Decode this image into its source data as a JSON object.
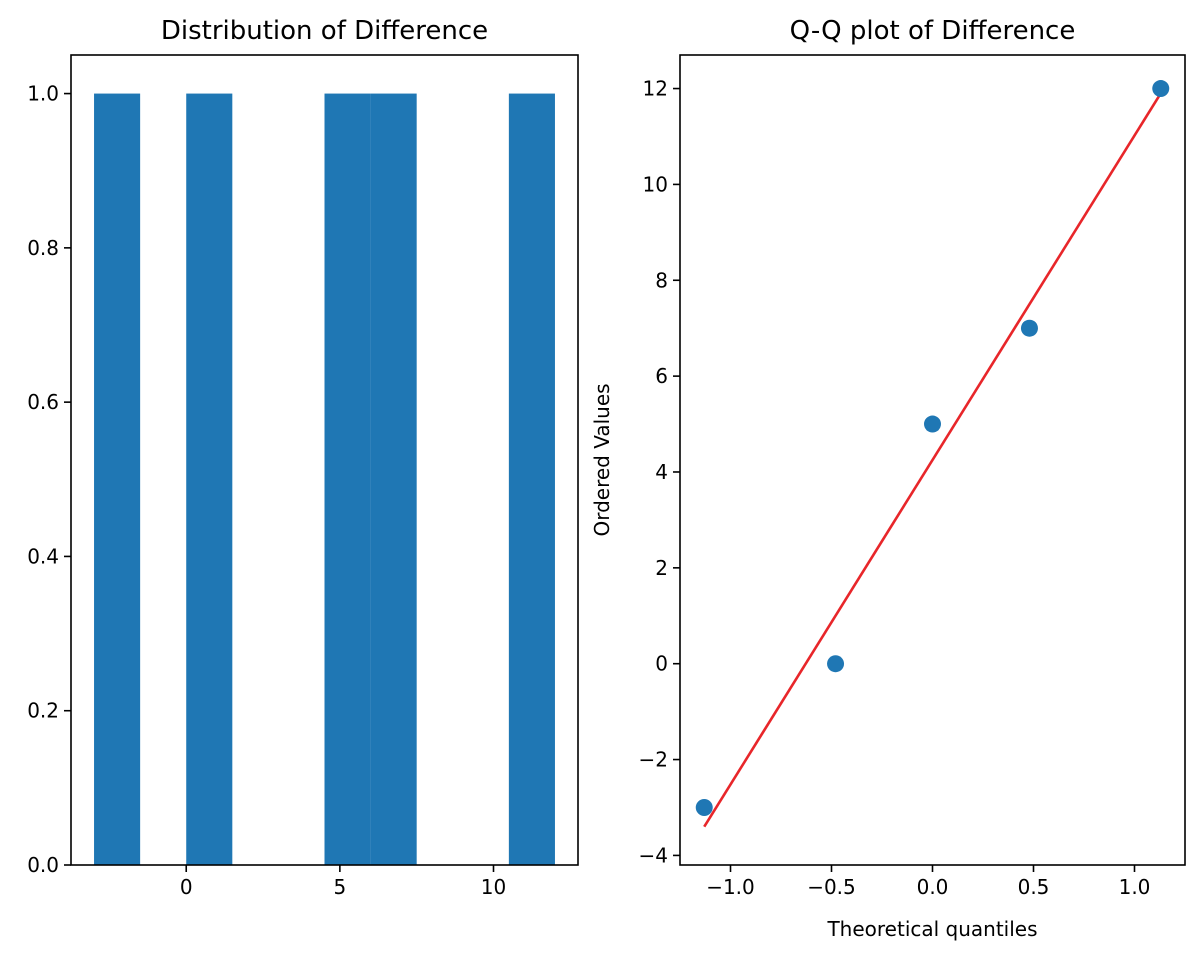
{
  "chart_data": [
    {
      "type": "bar",
      "title": "Distribution of Difference",
      "xlabel": "",
      "ylabel": "",
      "grid": false,
      "xlim": [
        -3.75,
        12.75
      ],
      "ylim": [
        0,
        1.05
      ],
      "bins": [
        {
          "start": -3.0,
          "end": -1.5,
          "count": 1
        },
        {
          "start": 0.0,
          "end": 1.5,
          "count": 1
        },
        {
          "start": 4.5,
          "end": 6.0,
          "count": 1
        },
        {
          "start": 6.0,
          "end": 7.5,
          "count": 1
        },
        {
          "start": 10.5,
          "end": 12.0,
          "count": 1
        }
      ],
      "xticks": [
        0,
        5,
        10
      ],
      "xtick_labels": [
        "0",
        "5",
        "10"
      ],
      "yticks": [
        0.0,
        0.2,
        0.4,
        0.6,
        0.8,
        1.0
      ],
      "ytick_labels": [
        "0.0",
        "0.2",
        "0.4",
        "0.6",
        "0.8",
        "1.0"
      ],
      "bar_color": "#1f77b4"
    },
    {
      "type": "scatter",
      "title": "Q-Q plot of Difference",
      "xlabel": "Theoretical quantiles",
      "ylabel": "Ordered Values",
      "grid": false,
      "xlim": [
        -1.25,
        1.25
      ],
      "ylim": [
        -4.2,
        12.7
      ],
      "points": [
        {
          "x": -1.13,
          "y": -3
        },
        {
          "x": -0.48,
          "y": 0
        },
        {
          "x": 0.0,
          "y": 5
        },
        {
          "x": 0.48,
          "y": 7
        },
        {
          "x": 1.13,
          "y": 12
        }
      ],
      "fit_line": {
        "x": [
          -1.13,
          1.13
        ],
        "y": [
          -3.4,
          11.9
        ]
      },
      "xticks": [
        -1.0,
        -0.5,
        0.0,
        0.5,
        1.0
      ],
      "xtick_labels": [
        "−1.0",
        "−0.5",
        "0.0",
        "0.5",
        "1.0"
      ],
      "yticks": [
        -4,
        -2,
        0,
        2,
        4,
        6,
        8,
        10,
        12
      ],
      "ytick_labels": [
        "−4",
        "−2",
        "0",
        "2",
        "4",
        "6",
        "8",
        "10",
        "12"
      ],
      "marker_color": "#1f77b4",
      "line_color": "#e8262a"
    }
  ]
}
